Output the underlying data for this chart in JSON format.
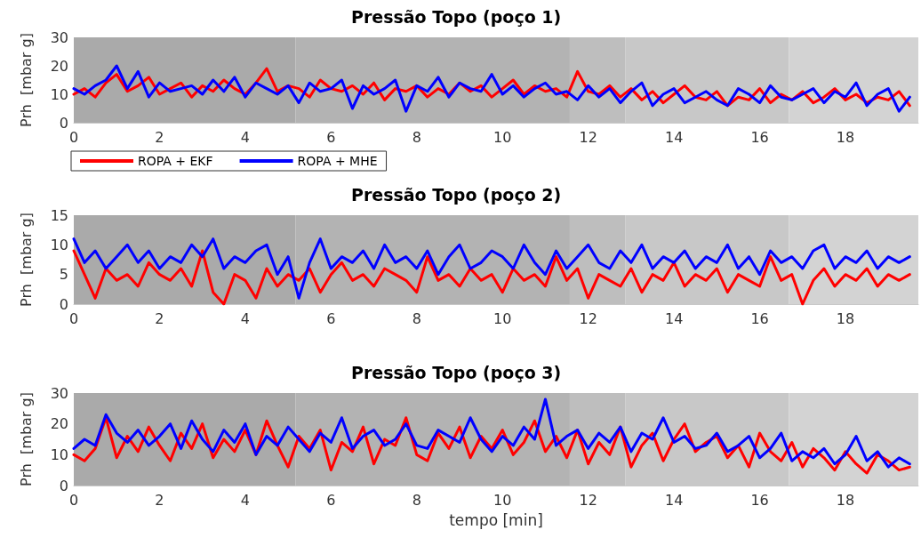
{
  "chart_data": [
    {
      "type": "line",
      "title": "Pressão Topo (poço 1)",
      "ylabel": "Prh  [mbar g]",
      "legend": "bottom left",
      "marker": "none",
      "xlim": [
        0,
        19.7
      ],
      "xticks": [
        0,
        2,
        4,
        6,
        8,
        10,
        12,
        14,
        16,
        18
      ],
      "ylim": [
        0,
        30
      ],
      "yticks": [
        0,
        10,
        20,
        30
      ],
      "bands": [
        {
          "axis": "x",
          "from": 0,
          "to": 5.17,
          "color": "#aaaaaa"
        },
        {
          "axis": "x",
          "from": 5.17,
          "to": 11.57,
          "color": "#b3b3b3"
        },
        {
          "axis": "x",
          "from": 11.57,
          "to": 12.87,
          "color": "#bebebe"
        },
        {
          "axis": "x",
          "from": 12.87,
          "to": 16.68,
          "color": "#c8c8c8"
        },
        {
          "axis": "x",
          "from": 16.68,
          "to": 19.7,
          "color": "#d3d3d3"
        }
      ],
      "x": [
        0,
        0.25,
        0.5,
        0.75,
        1,
        1.25,
        1.5,
        1.75,
        2,
        2.25,
        2.5,
        2.75,
        3,
        3.25,
        3.5,
        3.75,
        4,
        4.25,
        4.5,
        4.75,
        5,
        5.25,
        5.5,
        5.75,
        6,
        6.25,
        6.5,
        6.75,
        7,
        7.25,
        7.5,
        7.75,
        8,
        8.25,
        8.5,
        8.75,
        9,
        9.25,
        9.5,
        9.75,
        10,
        10.25,
        10.5,
        10.75,
        11,
        11.25,
        11.5,
        11.75,
        12,
        12.25,
        12.5,
        12.75,
        13,
        13.25,
        13.5,
        13.75,
        14,
        14.25,
        14.5,
        14.75,
        15,
        15.25,
        15.5,
        15.75,
        16,
        16.25,
        16.5,
        16.75,
        17,
        17.25,
        17.5,
        17.75,
        18,
        18.25,
        18.5,
        18.75,
        19,
        19.25,
        19.5
      ],
      "series": [
        {
          "name": "ROPA + EKF",
          "color": "#ff0000",
          "values": [
            10,
            12,
            9,
            14,
            17,
            11,
            13,
            16,
            10,
            12,
            14,
            9,
            13,
            11,
            15,
            12,
            10,
            14,
            19,
            11,
            13,
            12,
            9,
            15,
            12,
            11,
            13,
            10,
            14,
            8,
            12,
            11,
            13,
            9,
            12,
            10,
            14,
            11,
            13,
            9,
            12,
            15,
            10,
            13,
            11,
            12,
            9,
            18,
            11,
            10,
            13,
            9,
            12,
            8,
            11,
            7,
            10,
            13,
            9,
            8,
            11,
            6,
            9,
            8,
            12,
            7,
            10,
            8,
            11,
            7,
            9,
            12,
            8,
            10,
            7,
            9,
            8,
            11,
            6
          ]
        },
        {
          "name": "ROPA + MHE",
          "color": "#0000ff",
          "values": [
            12,
            10,
            13,
            15,
            20,
            12,
            18,
            9,
            14,
            11,
            12,
            13,
            10,
            15,
            11,
            16,
            9,
            14,
            12,
            10,
            13,
            7,
            14,
            11,
            12,
            15,
            5,
            13,
            10,
            12,
            15,
            4,
            13,
            11,
            16,
            9,
            14,
            12,
            11,
            17,
            10,
            13,
            9,
            12,
            14,
            10,
            11,
            8,
            13,
            9,
            12,
            7,
            11,
            14,
            6,
            10,
            12,
            7,
            9,
            11,
            8,
            6,
            12,
            10,
            7,
            13,
            9,
            8,
            10,
            12,
            7,
            11,
            9,
            14,
            6,
            10,
            12,
            4,
            9
          ]
        }
      ]
    },
    {
      "type": "line",
      "title": "Pressão Topo (poço 2)",
      "ylabel": "Prh  [mbar g]",
      "marker": "none",
      "xlim": [
        0,
        19.7
      ],
      "xticks": [
        0,
        2,
        4,
        6,
        8,
        10,
        12,
        14,
        16,
        18
      ],
      "ylim": [
        0,
        15
      ],
      "yticks": [
        0,
        5,
        10,
        15
      ],
      "bands": [
        {
          "axis": "x",
          "from": 0,
          "to": 5.17,
          "color": "#aaaaaa"
        },
        {
          "axis": "x",
          "from": 5.17,
          "to": 11.57,
          "color": "#b3b3b3"
        },
        {
          "axis": "x",
          "from": 11.57,
          "to": 12.87,
          "color": "#bebebe"
        },
        {
          "axis": "x",
          "from": 12.87,
          "to": 16.68,
          "color": "#c8c8c8"
        },
        {
          "axis": "x",
          "from": 16.68,
          "to": 19.7,
          "color": "#d3d3d3"
        }
      ],
      "x": [
        0,
        0.25,
        0.5,
        0.75,
        1,
        1.25,
        1.5,
        1.75,
        2,
        2.25,
        2.5,
        2.75,
        3,
        3.25,
        3.5,
        3.75,
        4,
        4.25,
        4.5,
        4.75,
        5,
        5.25,
        5.5,
        5.75,
        6,
        6.25,
        6.5,
        6.75,
        7,
        7.25,
        7.5,
        7.75,
        8,
        8.25,
        8.5,
        8.75,
        9,
        9.25,
        9.5,
        9.75,
        10,
        10.25,
        10.5,
        10.75,
        11,
        11.25,
        11.5,
        11.75,
        12,
        12.25,
        12.5,
        12.75,
        13,
        13.25,
        13.5,
        13.75,
        14,
        14.25,
        14.5,
        14.75,
        15,
        15.25,
        15.5,
        15.75,
        16,
        16.25,
        16.5,
        16.75,
        17,
        17.25,
        17.5,
        17.75,
        18,
        18.25,
        18.5,
        18.75,
        19,
        19.25,
        19.5
      ],
      "series": [
        {
          "color": "#ff0000",
          "values": [
            9,
            5,
            1,
            6,
            4,
            5,
            3,
            7,
            5,
            4,
            6,
            3,
            9,
            2,
            0,
            5,
            4,
            1,
            6,
            3,
            5,
            4,
            6,
            2,
            5,
            7,
            4,
            5,
            3,
            6,
            5,
            4,
            2,
            8,
            4,
            5,
            3,
            6,
            4,
            5,
            2,
            6,
            4,
            5,
            3,
            8,
            4,
            6,
            1,
            5,
            4,
            3,
            6,
            2,
            5,
            4,
            7,
            3,
            5,
            4,
            6,
            2,
            5,
            4,
            3,
            8,
            4,
            5,
            0,
            4,
            6,
            3,
            5,
            4,
            6,
            3,
            5,
            4,
            5
          ]
        },
        {
          "color": "#0000ff",
          "values": [
            11,
            7,
            9,
            6,
            8,
            10,
            7,
            9,
            6,
            8,
            7,
            10,
            8,
            11,
            6,
            8,
            7,
            9,
            10,
            5,
            8,
            1,
            7,
            11,
            6,
            8,
            7,
            9,
            6,
            10,
            7,
            8,
            6,
            9,
            5,
            8,
            10,
            6,
            7,
            9,
            8,
            6,
            10,
            7,
            5,
            9,
            6,
            8,
            10,
            7,
            6,
            9,
            7,
            10,
            6,
            8,
            7,
            9,
            6,
            8,
            7,
            10,
            6,
            8,
            5,
            9,
            7,
            8,
            6,
            9,
            10,
            6,
            8,
            7,
            9,
            6,
            8,
            7,
            8
          ]
        }
      ]
    },
    {
      "type": "line",
      "title": "Pressão Topo (poço 3)",
      "xlabel": "tempo [min]",
      "ylabel": "Prh  [mbar g]",
      "marker": "none",
      "xlim": [
        0,
        19.7
      ],
      "xticks": [
        0,
        2,
        4,
        6,
        8,
        10,
        12,
        14,
        16,
        18
      ],
      "ylim": [
        0,
        30
      ],
      "yticks": [
        0,
        10,
        20,
        30
      ],
      "bands": [
        {
          "axis": "x",
          "from": 0,
          "to": 5.17,
          "color": "#aaaaaa"
        },
        {
          "axis": "x",
          "from": 5.17,
          "to": 11.57,
          "color": "#b3b3b3"
        },
        {
          "axis": "x",
          "from": 11.57,
          "to": 12.87,
          "color": "#bebebe"
        },
        {
          "axis": "x",
          "from": 12.87,
          "to": 16.68,
          "color": "#c8c8c8"
        },
        {
          "axis": "x",
          "from": 16.68,
          "to": 19.7,
          "color": "#d3d3d3"
        }
      ],
      "x": [
        0,
        0.25,
        0.5,
        0.75,
        1,
        1.25,
        1.5,
        1.75,
        2,
        2.25,
        2.5,
        2.75,
        3,
        3.25,
        3.5,
        3.75,
        4,
        4.25,
        4.5,
        4.75,
        5,
        5.25,
        5.5,
        5.75,
        6,
        6.25,
        6.5,
        6.75,
        7,
        7.25,
        7.5,
        7.75,
        8,
        8.25,
        8.5,
        8.75,
        9,
        9.25,
        9.5,
        9.75,
        10,
        10.25,
        10.5,
        10.75,
        11,
        11.25,
        11.5,
        11.75,
        12,
        12.25,
        12.5,
        12.75,
        13,
        13.25,
        13.5,
        13.75,
        14,
        14.25,
        14.5,
        14.75,
        15,
        15.25,
        15.5,
        15.75,
        16,
        16.25,
        16.5,
        16.75,
        17,
        17.25,
        17.5,
        17.75,
        18,
        18.25,
        18.5,
        18.75,
        19,
        19.25,
        19.5
      ],
      "series": [
        {
          "color": "#ff0000",
          "values": [
            10,
            8,
            12,
            22,
            9,
            16,
            11,
            19,
            13,
            8,
            17,
            12,
            20,
            9,
            15,
            11,
            18,
            10,
            21,
            13,
            6,
            16,
            12,
            18,
            5,
            14,
            11,
            19,
            7,
            15,
            13,
            22,
            10,
            8,
            17,
            12,
            19,
            9,
            16,
            12,
            18,
            10,
            14,
            21,
            11,
            16,
            9,
            18,
            7,
            14,
            10,
            19,
            6,
            13,
            17,
            8,
            15,
            20,
            11,
            14,
            16,
            9,
            13,
            6,
            17,
            11,
            8,
            14,
            6,
            12,
            9,
            5,
            11,
            7,
            4,
            10,
            8,
            5,
            6
          ]
        },
        {
          "color": "#0000ff",
          "values": [
            12,
            15,
            13,
            23,
            17,
            14,
            18,
            13,
            16,
            20,
            12,
            21,
            15,
            11,
            18,
            14,
            20,
            10,
            16,
            13,
            19,
            15,
            11,
            17,
            14,
            22,
            12,
            16,
            18,
            13,
            15,
            20,
            13,
            12,
            18,
            16,
            14,
            22,
            15,
            11,
            16,
            13,
            19,
            15,
            28,
            13,
            16,
            18,
            12,
            17,
            14,
            19,
            11,
            17,
            15,
            22,
            14,
            16,
            12,
            13,
            17,
            11,
            13,
            16,
            9,
            12,
            17,
            8,
            11,
            9,
            12,
            7,
            10,
            16,
            8,
            11,
            6,
            9,
            7
          ]
        }
      ]
    }
  ]
}
